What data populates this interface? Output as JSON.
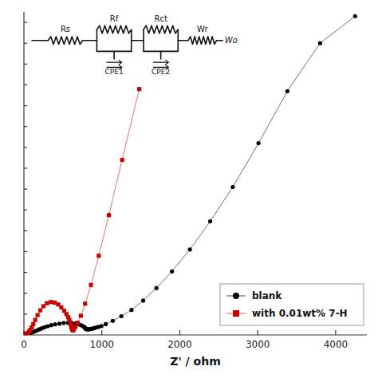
{
  "chart_data": {
    "type": "line",
    "xlabel": "Z' / ohm",
    "xlim": [
      0,
      4400
    ],
    "ylim": [
      0,
      1550
    ],
    "xticks": [
      0,
      1000,
      2000,
      3000,
      4000
    ],
    "yticks": [
      0,
      100,
      200,
      300,
      400,
      500,
      600,
      700,
      800,
      900,
      1000,
      1100,
      1200,
      1300,
      1400,
      1500
    ],
    "tick_labels": "x",
    "legend": "lower right",
    "annotations": [
      "Rs",
      "Rf",
      "CPE1",
      "Rct",
      "CPE2",
      "Wr",
      "Wo"
    ],
    "series": [
      {
        "name": "blank",
        "color": "#000000",
        "marker": "circle",
        "x": [
          20,
          35,
          50,
          65,
          80,
          95,
          110,
          130,
          150,
          175,
          200,
          230,
          265,
          305,
          350,
          400,
          455,
          510,
          565,
          615,
          660,
          700,
          730,
          755,
          770,
          780,
          785,
          790,
          795,
          800,
          808,
          818,
          830,
          845,
          862,
          882,
          905,
          930,
          960,
          995,
          1050,
          1140,
          1250,
          1380,
          1530,
          1700,
          1900,
          2130,
          2390,
          2680,
          3010,
          3380,
          3800,
          4250
        ],
        "values": [
          2,
          3,
          5,
          7,
          9,
          11,
          13,
          16,
          19,
          23,
          27,
          32,
          37,
          42,
          47,
          51,
          54,
          57,
          58,
          57,
          55,
          51,
          47,
          43,
          39,
          36,
          33,
          31,
          29,
          28,
          27,
          27,
          27,
          28,
          29,
          31,
          33,
          36,
          39,
          43,
          52,
          68,
          90,
          120,
          165,
          225,
          305,
          410,
          545,
          710,
          920,
          1170,
          1400,
          1530
        ]
      },
      {
        "name": "with 0.01wt% 7-H",
        "color": "#cc0000",
        "marker": "square",
        "x": [
          20,
          35,
          50,
          65,
          80,
          100,
          120,
          145,
          175,
          210,
          250,
          295,
          345,
          395,
          440,
          480,
          515,
          545,
          568,
          583,
          593,
          600,
          606,
          610,
          614,
          617,
          620,
          623,
          627,
          632,
          640,
          660,
          690,
          730,
          785,
          860,
          960,
          1090,
          1260,
          1480
        ],
        "values": [
          3,
          6,
          10,
          16,
          24,
          36,
          52,
          72,
          95,
          118,
          138,
          152,
          158,
          155,
          146,
          132,
          116,
          100,
          85,
          72,
          61,
          52,
          45,
          39,
          34,
          30,
          27,
          25,
          23,
          22,
          28,
          38,
          58,
          92,
          150,
          240,
          380,
          575,
          840,
          1180
        ]
      }
    ]
  }
}
